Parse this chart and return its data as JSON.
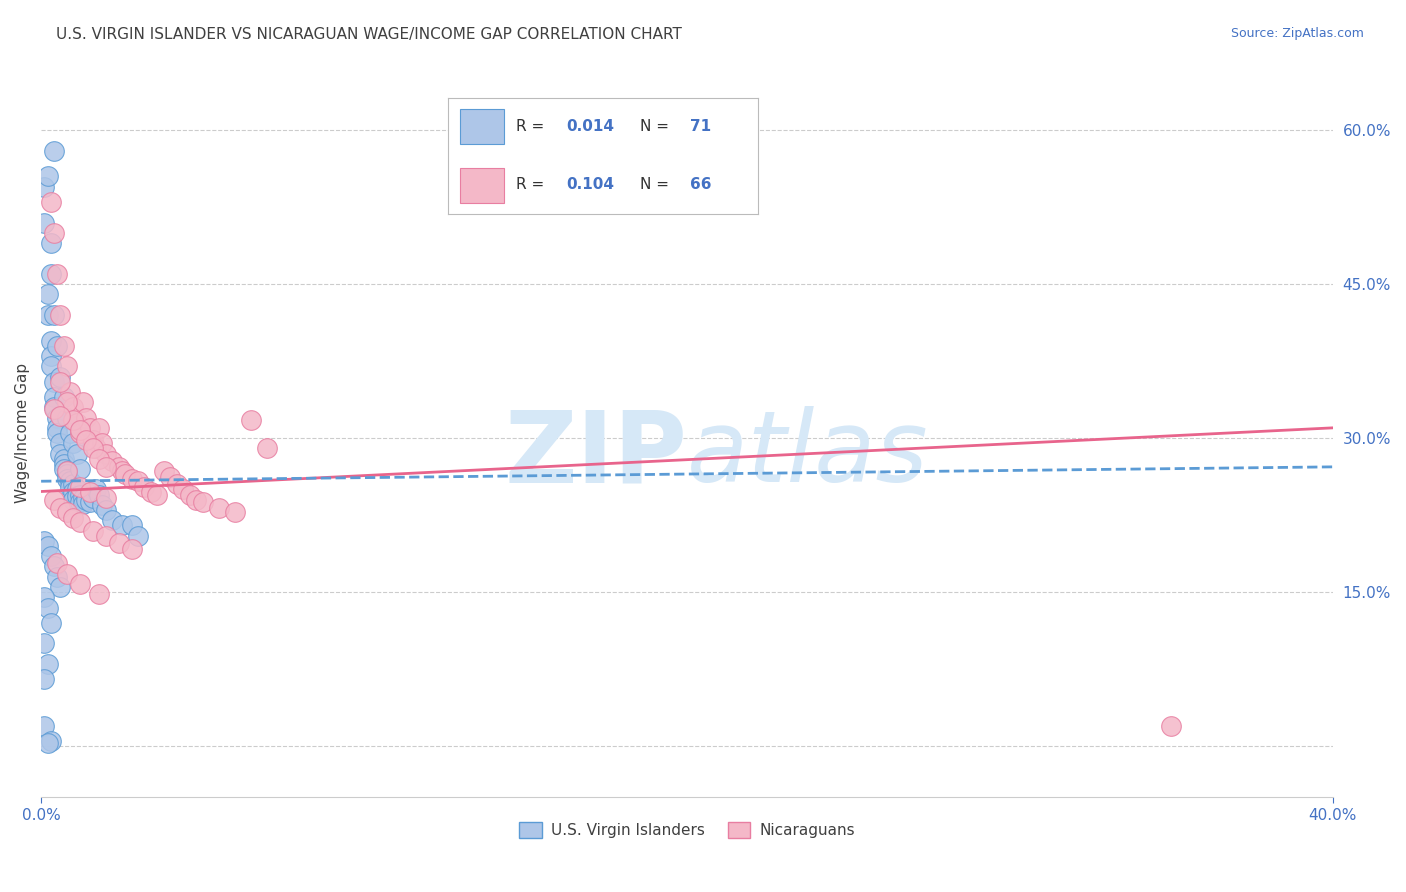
{
  "title": "U.S. VIRGIN ISLANDER VS NICARAGUAN WAGE/INCOME GAP CORRELATION CHART",
  "source": "Source: ZipAtlas.com",
  "ylabel": "Wage/Income Gap",
  "y_ticks_right": [
    0.0,
    0.15,
    0.3,
    0.45,
    0.6
  ],
  "y_tick_labels_right": [
    "",
    "15.0%",
    "30.0%",
    "45.0%",
    "60.0%"
  ],
  "x_min": 0.0,
  "x_max": 0.4,
  "y_min": -0.05,
  "y_max": 0.66,
  "blue_color": "#aec6e8",
  "blue_edge": "#5b9bd5",
  "pink_color": "#f4b8c8",
  "pink_edge": "#e87ea1",
  "line_blue_color": "#5b9bd5",
  "line_pink_color": "#e8648c",
  "watermark_color": "#d6e8f7",
  "axis_label_color": "#4472c4",
  "title_color": "#404040",
  "grid_color": "#cccccc",
  "background_color": "#ffffff",
  "legend_text_color": "#333333",
  "legend_value_color": "#4472c4",
  "blue_scatter_x": [
    0.001,
    0.001,
    0.002,
    0.002,
    0.003,
    0.003,
    0.003,
    0.004,
    0.004,
    0.004,
    0.005,
    0.005,
    0.005,
    0.006,
    0.006,
    0.007,
    0.007,
    0.007,
    0.008,
    0.008,
    0.008,
    0.009,
    0.009,
    0.01,
    0.01,
    0.01,
    0.011,
    0.011,
    0.012,
    0.012,
    0.013,
    0.013,
    0.014,
    0.015,
    0.016,
    0.017,
    0.018,
    0.019,
    0.02,
    0.022,
    0.025,
    0.028,
    0.03,
    0.003,
    0.004,
    0.005,
    0.006,
    0.007,
    0.008,
    0.009,
    0.01,
    0.011,
    0.012,
    0.001,
    0.002,
    0.003,
    0.004,
    0.005,
    0.006,
    0.001,
    0.002,
    0.003,
    0.001,
    0.002,
    0.001,
    0.001,
    0.003,
    0.002,
    0.004,
    0.002,
    0.003
  ],
  "blue_scatter_y": [
    0.545,
    0.51,
    0.44,
    0.42,
    0.395,
    0.38,
    0.37,
    0.355,
    0.34,
    0.33,
    0.32,
    0.31,
    0.305,
    0.295,
    0.285,
    0.28,
    0.275,
    0.27,
    0.268,
    0.265,
    0.26,
    0.258,
    0.252,
    0.255,
    0.248,
    0.24,
    0.25,
    0.244,
    0.245,
    0.238,
    0.242,
    0.236,
    0.24,
    0.238,
    0.242,
    0.25,
    0.245,
    0.235,
    0.23,
    0.22,
    0.215,
    0.215,
    0.205,
    0.46,
    0.42,
    0.39,
    0.36,
    0.34,
    0.32,
    0.305,
    0.295,
    0.285,
    0.27,
    0.2,
    0.195,
    0.185,
    0.175,
    0.165,
    0.155,
    0.145,
    0.135,
    0.12,
    0.1,
    0.08,
    0.065,
    0.02,
    0.005,
    0.003,
    0.58,
    0.555,
    0.49
  ],
  "pink_scatter_x": [
    0.003,
    0.004,
    0.005,
    0.006,
    0.007,
    0.008,
    0.009,
    0.01,
    0.011,
    0.012,
    0.013,
    0.014,
    0.015,
    0.016,
    0.017,
    0.018,
    0.019,
    0.02,
    0.022,
    0.024,
    0.025,
    0.026,
    0.028,
    0.03,
    0.032,
    0.034,
    0.036,
    0.038,
    0.04,
    0.042,
    0.044,
    0.046,
    0.048,
    0.05,
    0.055,
    0.06,
    0.065,
    0.07,
    0.006,
    0.008,
    0.01,
    0.012,
    0.014,
    0.016,
    0.018,
    0.02,
    0.004,
    0.006,
    0.008,
    0.01,
    0.012,
    0.016,
    0.02,
    0.024,
    0.028,
    0.005,
    0.008,
    0.012,
    0.018,
    0.35,
    0.004,
    0.006,
    0.008,
    0.012,
    0.015,
    0.02
  ],
  "pink_scatter_y": [
    0.53,
    0.5,
    0.46,
    0.42,
    0.39,
    0.37,
    0.345,
    0.33,
    0.315,
    0.305,
    0.335,
    0.32,
    0.31,
    0.298,
    0.29,
    0.31,
    0.295,
    0.285,
    0.278,
    0.272,
    0.268,
    0.265,
    0.26,
    0.258,
    0.252,
    0.248,
    0.245,
    0.268,
    0.262,
    0.255,
    0.25,
    0.245,
    0.24,
    0.238,
    0.232,
    0.228,
    0.318,
    0.29,
    0.355,
    0.335,
    0.318,
    0.308,
    0.298,
    0.29,
    0.28,
    0.272,
    0.24,
    0.232,
    0.228,
    0.222,
    0.218,
    0.21,
    0.205,
    0.198,
    0.192,
    0.178,
    0.168,
    0.158,
    0.148,
    0.02,
    0.328,
    0.322,
    0.268,
    0.252,
    0.248,
    0.242
  ],
  "blue_trend_x": [
    0.0,
    0.4
  ],
  "blue_trend_y": [
    0.258,
    0.272
  ],
  "pink_trend_x": [
    0.0,
    0.4
  ],
  "pink_trend_y": [
    0.248,
    0.31
  ]
}
